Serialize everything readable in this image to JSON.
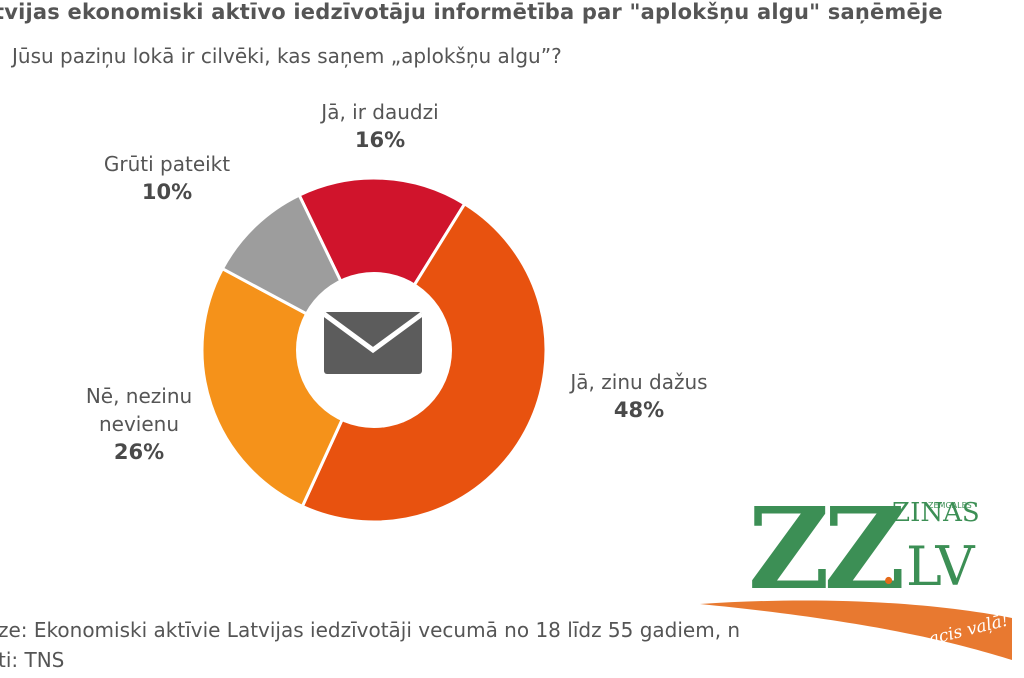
{
  "chart_data": {
    "type": "donut",
    "title": "tvijas ekonomiski aktīvo iedzīvotāju informētība par \"aplokšņu algu\" saņēmēje",
    "subtitle": "Jūsu paziņu lokā ir cilvēki, kas saņem „aplokšņu algu”?",
    "slices": [
      {
        "label_lines": [
          "Jā, ir daudzi"
        ],
        "value": 16,
        "value_label": "16%",
        "color": "#d0142c"
      },
      {
        "label_lines": [
          "Jā, zinu dažus"
        ],
        "value": 48,
        "value_label": "48%",
        "color": "#e8520f"
      },
      {
        "label_lines": [
          "Nē, nezinu",
          "nevienu"
        ],
        "value": 26,
        "value_label": "26%",
        "color": "#f5921a"
      },
      {
        "label_lines": [
          "Grūti pateikt"
        ],
        "value": 10,
        "value_label": "10%",
        "color": "#9d9d9d"
      }
    ],
    "center_icon": "envelope-icon"
  },
  "footer": {
    "line1": "ze: Ekonomiski aktīvie Latvijas iedzīvotāji vecumā no 18 līdz 55 gadiem, n",
    "line2": "ti: TNS"
  },
  "watermark": {
    "zz": "ZZ",
    "dot": ".",
    "lv": "LV",
    "zinas": "ZINAS",
    "zemgales": "ZEMGALES",
    "tagline": "acis vaļā!",
    "green": "#3c8f55",
    "orange": "#e56a1a"
  }
}
